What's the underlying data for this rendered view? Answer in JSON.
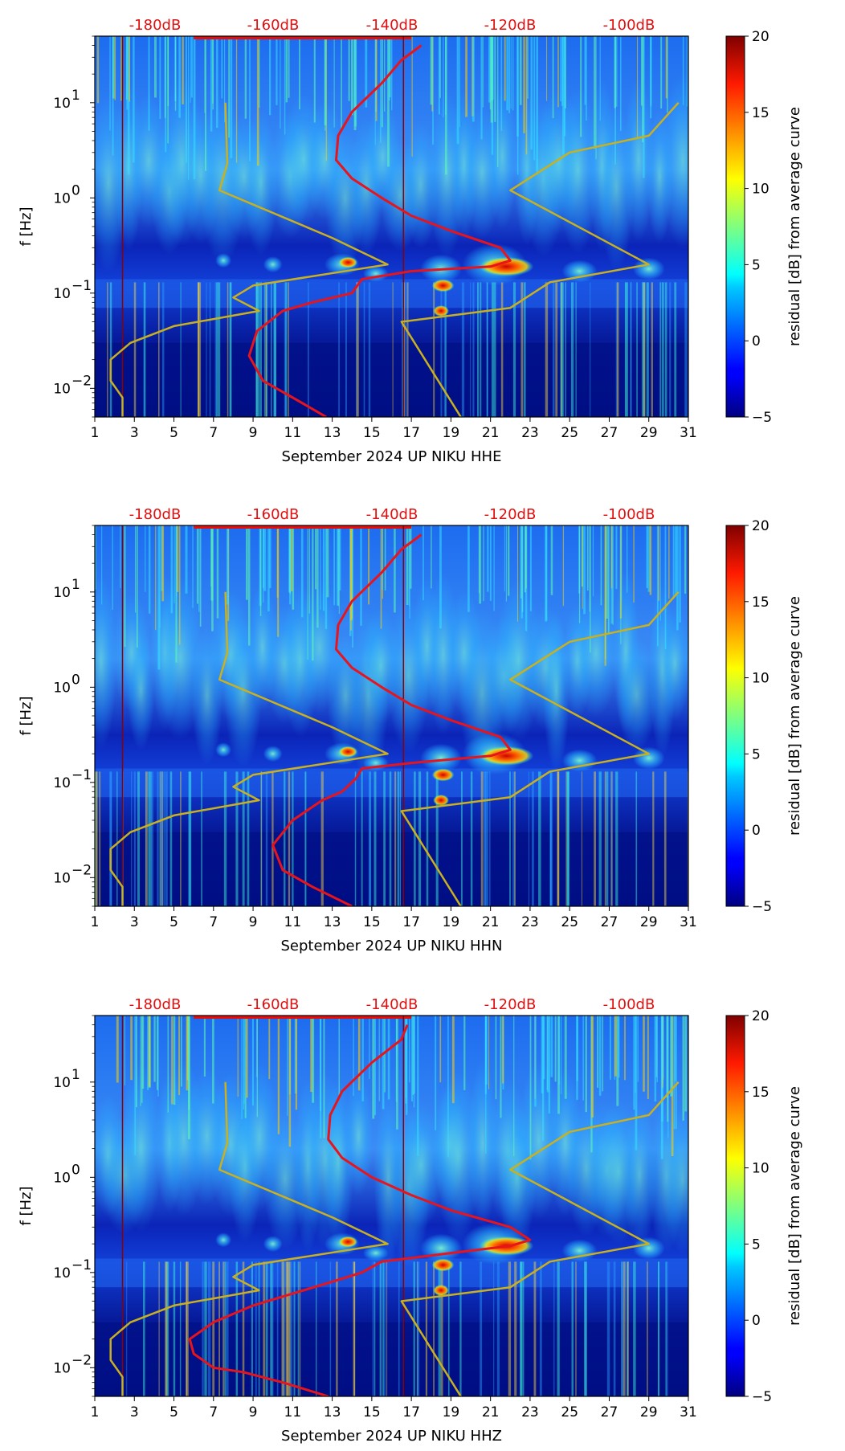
{
  "chart_data": [
    {
      "type": "heatmap",
      "title": "",
      "xlabel": "September 2024 UP NIKU  HHE",
      "ylabel": "f [Hz]",
      "xlim": [
        1,
        31
      ],
      "ylim": [
        0.005,
        50
      ],
      "yscale": "log",
      "x_ticks": [
        "1",
        "3",
        "5",
        "7",
        "9",
        "11",
        "13",
        "15",
        "17",
        "19",
        "21",
        "23",
        "25",
        "27",
        "29",
        "31"
      ],
      "y_ticks": [
        {
          "label": "10",
          "exp": "−2",
          "value": 0.01
        },
        {
          "label": "10",
          "exp": "−1",
          "value": 0.1
        },
        {
          "label": "10",
          "exp": "0",
          "value": 1
        },
        {
          "label": "10",
          "exp": "1",
          "value": 10
        }
      ],
      "db_scale_labels": [
        "-180dB",
        "-160dB",
        "-140dB",
        "-120dB",
        "-100dB"
      ],
      "colorbar": {
        "label": "residual [dB] from average curve",
        "min": -5,
        "max": 20,
        "ticks": [
          "−5",
          "0",
          "5",
          "10",
          "15",
          "20"
        ]
      },
      "series": [
        {
          "name": "average curve",
          "color": "#e8141c",
          "points": [
            [
              12.7,
              0.005
            ],
            [
              11,
              0.008
            ],
            [
              9.5,
              0.012
            ],
            [
              8.8,
              0.022
            ],
            [
              9.2,
              0.04
            ],
            [
              10.5,
              0.065
            ],
            [
              12,
              0.08
            ],
            [
              14,
              0.1
            ],
            [
              14.5,
              0.14
            ],
            [
              17,
              0.17
            ],
            [
              21,
              0.19
            ],
            [
              22,
              0.22
            ],
            [
              21.5,
              0.3
            ],
            [
              19,
              0.45
            ],
            [
              17,
              0.65
            ],
            [
              15.5,
              1.0
            ],
            [
              14,
              1.6
            ],
            [
              13.2,
              2.5
            ],
            [
              13.3,
              4.5
            ],
            [
              14,
              8
            ],
            [
              15.5,
              16
            ],
            [
              16.5,
              28
            ],
            [
              17.5,
              40
            ]
          ]
        },
        {
          "name": "noise model low",
          "color": "#c8b020",
          "points": [
            [
              2.4,
              0.005
            ],
            [
              2.4,
              0.008
            ],
            [
              1.8,
              0.012
            ],
            [
              1.8,
              0.02
            ],
            [
              2.8,
              0.03
            ],
            [
              5,
              0.045
            ],
            [
              9.3,
              0.065
            ],
            [
              8,
              0.09
            ],
            [
              9,
              0.12
            ],
            [
              15.8,
              0.2
            ],
            [
              13,
              0.38
            ],
            [
              7.3,
              1.2
            ],
            [
              7.7,
              2.3
            ],
            [
              7.6,
              10
            ]
          ]
        },
        {
          "name": "noise model high",
          "color": "#c8b020",
          "points": [
            [
              19.5,
              0.005
            ],
            [
              16.5,
              0.05
            ],
            [
              22,
              0.07
            ],
            [
              24,
              0.13
            ],
            [
              29,
              0.2
            ],
            [
              22,
              1.2
            ],
            [
              25,
              3
            ],
            [
              29,
              4.5
            ],
            [
              30.5,
              10
            ]
          ]
        }
      ]
    },
    {
      "type": "heatmap",
      "title": "",
      "xlabel": "September 2024 UP NIKU  HHN",
      "ylabel": "f [Hz]",
      "xlim": [
        1,
        31
      ],
      "ylim": [
        0.005,
        50
      ],
      "yscale": "log",
      "x_ticks": [
        "1",
        "3",
        "5",
        "7",
        "9",
        "11",
        "13",
        "15",
        "17",
        "19",
        "21",
        "23",
        "25",
        "27",
        "29",
        "31"
      ],
      "y_ticks": [
        {
          "label": "10",
          "exp": "−2",
          "value": 0.01
        },
        {
          "label": "10",
          "exp": "−1",
          "value": 0.1
        },
        {
          "label": "10",
          "exp": "0",
          "value": 1
        },
        {
          "label": "10",
          "exp": "1",
          "value": 10
        }
      ],
      "db_scale_labels": [
        "-180dB",
        "-160dB",
        "-140dB",
        "-120dB",
        "-100dB"
      ],
      "colorbar": {
        "label": "residual [dB] from average curve",
        "min": -5,
        "max": 20,
        "ticks": [
          "−5",
          "0",
          "5",
          "10",
          "15",
          "20"
        ]
      },
      "series": [
        {
          "name": "average curve",
          "color": "#e8141c",
          "points": [
            [
              14,
              0.005
            ],
            [
              12,
              0.008
            ],
            [
              10.5,
              0.012
            ],
            [
              10,
              0.022
            ],
            [
              11,
              0.04
            ],
            [
              12.5,
              0.065
            ],
            [
              13.5,
              0.08
            ],
            [
              14.2,
              0.11
            ],
            [
              14.5,
              0.14
            ],
            [
              17,
              0.16
            ],
            [
              21,
              0.19
            ],
            [
              22,
              0.22
            ],
            [
              21.5,
              0.3
            ],
            [
              19,
              0.45
            ],
            [
              17,
              0.65
            ],
            [
              15.5,
              1.0
            ],
            [
              14,
              1.6
            ],
            [
              13.2,
              2.5
            ],
            [
              13.3,
              4.5
            ],
            [
              14,
              8
            ],
            [
              15.5,
              16
            ],
            [
              16.5,
              28
            ],
            [
              17.5,
              40
            ]
          ]
        },
        {
          "name": "noise model low",
          "color": "#c8b020",
          "points": [
            [
              2.4,
              0.005
            ],
            [
              2.4,
              0.008
            ],
            [
              1.8,
              0.012
            ],
            [
              1.8,
              0.02
            ],
            [
              2.8,
              0.03
            ],
            [
              5,
              0.045
            ],
            [
              9.3,
              0.065
            ],
            [
              8,
              0.09
            ],
            [
              9,
              0.12
            ],
            [
              15.8,
              0.2
            ],
            [
              13,
              0.38
            ],
            [
              7.3,
              1.2
            ],
            [
              7.7,
              2.3
            ],
            [
              7.6,
              10
            ]
          ]
        },
        {
          "name": "noise model high",
          "color": "#c8b020",
          "points": [
            [
              19.5,
              0.005
            ],
            [
              16.5,
              0.05
            ],
            [
              22,
              0.07
            ],
            [
              24,
              0.13
            ],
            [
              29,
              0.2
            ],
            [
              22,
              1.2
            ],
            [
              25,
              3
            ],
            [
              29,
              4.5
            ],
            [
              30.5,
              10
            ]
          ]
        }
      ]
    },
    {
      "type": "heatmap",
      "title": "",
      "xlabel": "September 2024 UP NIKU  HHZ",
      "ylabel": "f [Hz]",
      "xlim": [
        1,
        31
      ],
      "ylim": [
        0.005,
        50
      ],
      "yscale": "log",
      "x_ticks": [
        "1",
        "3",
        "5",
        "7",
        "9",
        "11",
        "13",
        "15",
        "17",
        "19",
        "21",
        "23",
        "25",
        "27",
        "29",
        "31"
      ],
      "y_ticks": [
        {
          "label": "10",
          "exp": "−2",
          "value": 0.01
        },
        {
          "label": "10",
          "exp": "−1",
          "value": 0.1
        },
        {
          "label": "10",
          "exp": "0",
          "value": 1
        },
        {
          "label": "10",
          "exp": "1",
          "value": 10
        }
      ],
      "db_scale_labels": [
        "-180dB",
        "-160dB",
        "-140dB",
        "-120dB",
        "-100dB"
      ],
      "colorbar": {
        "label": "residual [dB] from average curve",
        "min": -5,
        "max": 20,
        "ticks": [
          "−5",
          "0",
          "5",
          "10",
          "15",
          "20"
        ]
      },
      "series": [
        {
          "name": "average curve",
          "color": "#e8141c",
          "points": [
            [
              12.8,
              0.005
            ],
            [
              10.5,
              0.007
            ],
            [
              8.5,
              0.009
            ],
            [
              7,
              0.01
            ],
            [
              6,
              0.014
            ],
            [
              5.8,
              0.02
            ],
            [
              7,
              0.03
            ],
            [
              9,
              0.045
            ],
            [
              11,
              0.06
            ],
            [
              13,
              0.08
            ],
            [
              14.5,
              0.1
            ],
            [
              15.5,
              0.13
            ],
            [
              19,
              0.16
            ],
            [
              22,
              0.19
            ],
            [
              23,
              0.22
            ],
            [
              22,
              0.3
            ],
            [
              19,
              0.45
            ],
            [
              17,
              0.65
            ],
            [
              15,
              1.0
            ],
            [
              13.5,
              1.6
            ],
            [
              12.8,
              2.5
            ],
            [
              12.9,
              4.5
            ],
            [
              13.5,
              8
            ],
            [
              15,
              16
            ],
            [
              16.5,
              28
            ],
            [
              16.8,
              40
            ]
          ]
        },
        {
          "name": "noise model low",
          "color": "#c8b020",
          "points": [
            [
              2.4,
              0.005
            ],
            [
              2.4,
              0.008
            ],
            [
              1.8,
              0.012
            ],
            [
              1.8,
              0.02
            ],
            [
              2.8,
              0.03
            ],
            [
              5,
              0.045
            ],
            [
              9.3,
              0.065
            ],
            [
              8,
              0.09
            ],
            [
              9,
              0.12
            ],
            [
              15.8,
              0.2
            ],
            [
              13,
              0.38
            ],
            [
              7.3,
              1.2
            ],
            [
              7.7,
              2.3
            ],
            [
              7.6,
              10
            ]
          ]
        },
        {
          "name": "noise model high",
          "color": "#c8b020",
          "points": [
            [
              19.5,
              0.005
            ],
            [
              16.5,
              0.05
            ],
            [
              22,
              0.07
            ],
            [
              24,
              0.13
            ],
            [
              29,
              0.2
            ],
            [
              22,
              1.2
            ],
            [
              25,
              3
            ],
            [
              29,
              4.5
            ],
            [
              30.5,
              10
            ]
          ]
        }
      ]
    }
  ]
}
